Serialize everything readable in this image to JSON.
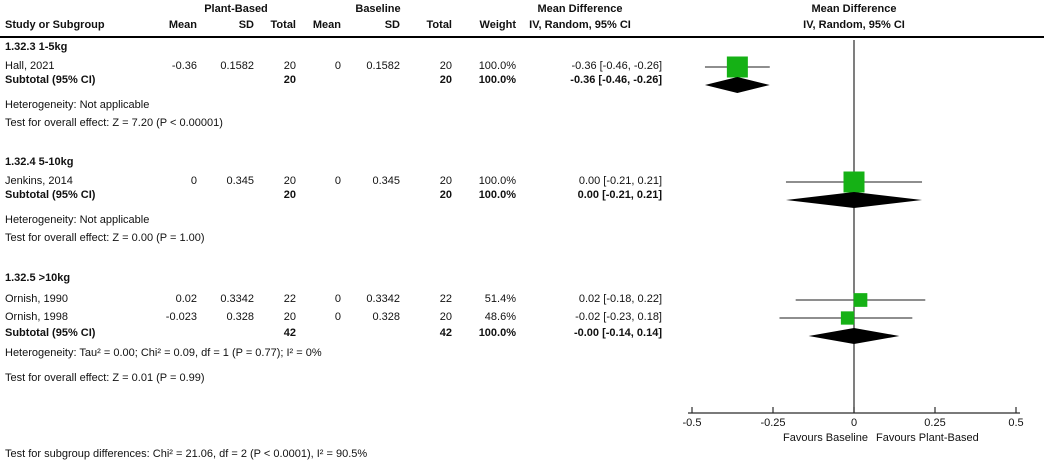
{
  "header": {
    "group1": "Plant-Based",
    "group2": "Baseline",
    "col_study": "Study or Subgroup",
    "col_mean": "Mean",
    "col_sd": "SD",
    "col_total": "Total",
    "col_weight": "Weight",
    "md_title": "Mean Difference",
    "md_sub": "IV, Random, 95% CI"
  },
  "subgroups": [
    {
      "title": "1.32.3 1-5kg",
      "studies": [
        {
          "study": "Hall, 2021",
          "mean1": "-0.36",
          "sd1": "0.1582",
          "total1": "20",
          "mean2": "0",
          "sd2": "0.1582",
          "total2": "20",
          "weight": "100.0%",
          "md": "-0.36 [-0.46, -0.26]"
        }
      ],
      "subtotal": {
        "label": "Subtotal (95% CI)",
        "total1": "20",
        "total2": "20",
        "weight": "100.0%",
        "md": "-0.36 [-0.46, -0.26]"
      },
      "heterogeneity": "Heterogeneity: Not applicable",
      "overall": "Test for overall effect: Z = 7.20 (P < 0.00001)"
    },
    {
      "title": "1.32.4 5-10kg",
      "studies": [
        {
          "study": "Jenkins, 2014",
          "mean1": "0",
          "sd1": "0.345",
          "total1": "20",
          "mean2": "0",
          "sd2": "0.345",
          "total2": "20",
          "weight": "100.0%",
          "md": "0.00 [-0.21, 0.21]"
        }
      ],
      "subtotal": {
        "label": "Subtotal (95% CI)",
        "total1": "20",
        "total2": "20",
        "weight": "100.0%",
        "md": "0.00 [-0.21, 0.21]"
      },
      "heterogeneity": "Heterogeneity: Not applicable",
      "overall": "Test for overall effect: Z = 0.00 (P = 1.00)"
    },
    {
      "title": "1.32.5 >10kg",
      "studies": [
        {
          "study": "Ornish, 1990",
          "mean1": "0.02",
          "sd1": "0.3342",
          "total1": "22",
          "mean2": "0",
          "sd2": "0.3342",
          "total2": "22",
          "weight": "51.4%",
          "md": "0.02 [-0.18, 0.22]"
        },
        {
          "study": "Ornish, 1998",
          "mean1": "-0.023",
          "sd1": "0.328",
          "total1": "20",
          "mean2": "0",
          "sd2": "0.328",
          "total2": "20",
          "weight": "48.6%",
          "md": "-0.02 [-0.23, 0.18]"
        }
      ],
      "subtotal": {
        "label": "Subtotal (95% CI)",
        "total1": "42",
        "total2": "42",
        "weight": "100.0%",
        "md": "-0.00 [-0.14, 0.14]"
      },
      "heterogeneity": "Heterogeneity: Tau² = 0.00; Chi² = 0.09, df = 1 (P = 0.77); I² = 0%",
      "overall": "Test for overall effect: Z = 0.01 (P = 0.99)"
    }
  ],
  "footer": {
    "subgroup_diff": "Test for subgroup differences: Chi² = 21.06, df = 2 (P < 0.0001), I² = 90.5%"
  },
  "axis": {
    "favours_left": "Favours Baseline",
    "favours_right": "Favours Plant-Based"
  },
  "colors": {
    "square": "#15b115",
    "diamond": "#000000",
    "whisker": "#4a4a4a",
    "axis": "#2a2a2a"
  },
  "chart_data": {
    "type": "forest",
    "effect_measure": "Mean Difference IV, Random, 95% CI",
    "x_axis": {
      "min": -0.5,
      "max": 0.5,
      "ticks": [
        -0.5,
        -0.25,
        0,
        0.25,
        0.5
      ],
      "tick_labels": [
        "-0.5",
        "-0.25",
        "0",
        "0.25",
        "0.5"
      ],
      "favours_left": "Favours Baseline",
      "favours_right": "Favours Plant-Based"
    },
    "subgroups": [
      {
        "title": "1.32.3 1-5kg",
        "studies": [
          {
            "name": "Hall, 2021",
            "md": -0.36,
            "ci": [
              -0.46,
              -0.26
            ],
            "weight_pct": 100.0
          }
        ],
        "subtotal": {
          "md": -0.36,
          "ci": [
            -0.46,
            -0.26
          ],
          "weight_pct": 100.0
        },
        "heterogeneity": "Not applicable",
        "overall_effect": "Z = 7.20 (P < 0.00001)"
      },
      {
        "title": "1.32.4 5-10kg",
        "studies": [
          {
            "name": "Jenkins, 2014",
            "md": 0.0,
            "ci": [
              -0.21,
              0.21
            ],
            "weight_pct": 100.0
          }
        ],
        "subtotal": {
          "md": 0.0,
          "ci": [
            -0.21,
            0.21
          ],
          "weight_pct": 100.0
        },
        "heterogeneity": "Not applicable",
        "overall_effect": "Z = 0.00 (P = 1.00)"
      },
      {
        "title": "1.32.5 >10kg",
        "studies": [
          {
            "name": "Ornish, 1990",
            "md": 0.02,
            "ci": [
              -0.18,
              0.22
            ],
            "weight_pct": 51.4
          },
          {
            "name": "Ornish, 1998",
            "md": -0.02,
            "ci": [
              -0.23,
              0.18
            ],
            "weight_pct": 48.6
          }
        ],
        "subtotal": {
          "md": -0.0,
          "ci": [
            -0.14,
            0.14
          ],
          "weight_pct": 100.0
        },
        "heterogeneity": "Tau² = 0.00; Chi² = 0.09, df = 1 (P = 0.77); I² = 0%",
        "overall_effect": "Z = 0.01 (P = 0.99)"
      }
    ],
    "subgroup_difference": "Chi² = 21.06, df = 2 (P < 0.0001), I² = 90.5%"
  }
}
